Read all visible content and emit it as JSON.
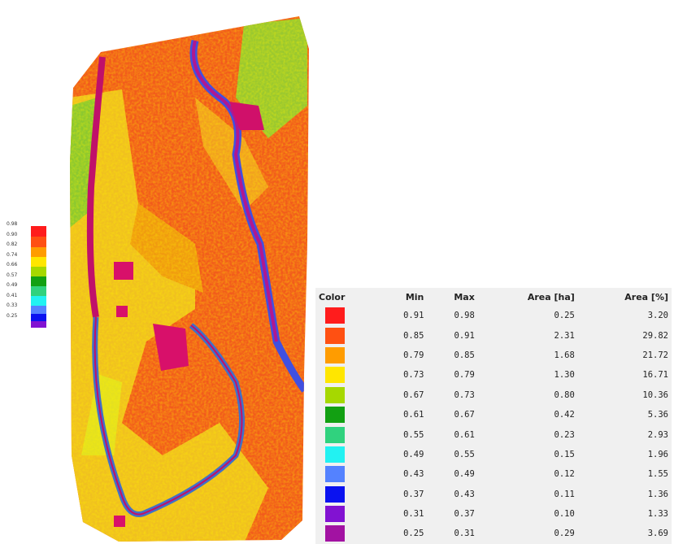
{
  "legend": {
    "ticks": [
      "0.98",
      "0.90",
      "0.82",
      "0.74",
      "0.66",
      "0.57",
      "0.49",
      "0.41",
      "0.33",
      "0.25"
    ]
  },
  "table": {
    "headers": [
      "Color",
      "Min",
      "Max",
      "Area [ha]",
      "Area [%]"
    ],
    "rows": [
      {
        "color": "#ff1c1c",
        "min": "0.91",
        "max": "0.98",
        "area_ha": "0.25",
        "area_pct": "3.20"
      },
      {
        "color": "#ff5012",
        "min": "0.85",
        "max": "0.91",
        "area_ha": "2.31",
        "area_pct": "29.82"
      },
      {
        "color": "#ff9c00",
        "min": "0.79",
        "max": "0.85",
        "area_ha": "1.68",
        "area_pct": "21.72"
      },
      {
        "color": "#ffe600",
        "min": "0.73",
        "max": "0.79",
        "area_ha": "1.30",
        "area_pct": "16.71"
      },
      {
        "color": "#a6d800",
        "min": "0.67",
        "max": "0.73",
        "area_ha": "0.80",
        "area_pct": "10.36"
      },
      {
        "color": "#12a012",
        "min": "0.61",
        "max": "0.67",
        "area_ha": "0.42",
        "area_pct": "5.36"
      },
      {
        "color": "#30d27e",
        "min": "0.55",
        "max": "0.61",
        "area_ha": "0.23",
        "area_pct": "2.93"
      },
      {
        "color": "#22f2f2",
        "min": "0.49",
        "max": "0.55",
        "area_ha": "0.15",
        "area_pct": "1.96"
      },
      {
        "color": "#5482ff",
        "min": "0.43",
        "max": "0.49",
        "area_ha": "0.12",
        "area_pct": "1.55"
      },
      {
        "color": "#0a12f0",
        "min": "0.37",
        "max": "0.43",
        "area_ha": "0.11",
        "area_pct": "1.36"
      },
      {
        "color": "#8212d2",
        "min": "0.31",
        "max": "0.37",
        "area_ha": "0.10",
        "area_pct": "1.33"
      },
      {
        "color": "#a212a2",
        "min": "0.25",
        "max": "0.31",
        "area_ha": "0.29",
        "area_pct": "3.69"
      }
    ]
  }
}
